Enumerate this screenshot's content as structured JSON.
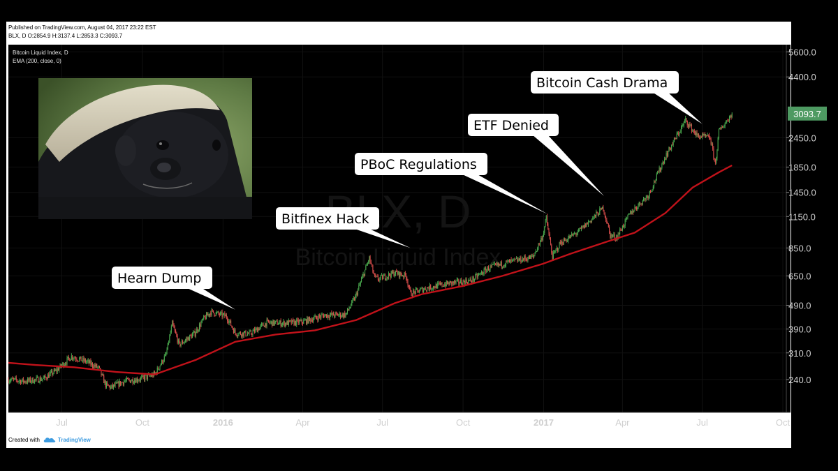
{
  "header": {
    "published": "Published on TradingView.com, August 04, 2017 23:22 EST",
    "symbol_line": "BLX, D  O:2854.9 H:3137.4 L:2853.3 C:3093.7"
  },
  "pane": {
    "title": "Bitcoin Liquid Index, D",
    "indicator": "EMA (200, close, 0)",
    "watermark_symbol": "BLX, D",
    "watermark_name": "Bitcoin Liquid Index"
  },
  "footer": {
    "created_with": "Created with",
    "brand": "TradingView"
  },
  "colors": {
    "background": "#000000",
    "frame": "#ffffff",
    "up_candle": "#4cae50",
    "down_candle": "#e0504e",
    "ema": "#c1121a",
    "last_price_badge": "#4e9a62",
    "axis_text": "#cfcfcf",
    "callout_box": "#ffffff"
  },
  "photo": {
    "icon": "honey-badger-photo"
  },
  "chart_data": {
    "type": "candlestick",
    "y_scale": "log",
    "y_ticks": [
      240.0,
      310.0,
      390.0,
      490.0,
      650.0,
      850.0,
      1150.0,
      1450.0,
      1850.0,
      2450.0,
      4400.0,
      5600.0
    ],
    "y_tick_labels": [
      "240.0",
      "310.0",
      "390.0",
      "490.0",
      "650.0",
      "850.0",
      "1150.0",
      "1450.0",
      "1850.0",
      "2450.0",
      "4400.0",
      "5600.0"
    ],
    "x_range": [
      "2015-05-01",
      "2017-10-05"
    ],
    "x_ticks": [
      {
        "date": "2015-07-01",
        "label": "Jul",
        "bold": false
      },
      {
        "date": "2015-10-01",
        "label": "Oct",
        "bold": false
      },
      {
        "date": "2016-01-01",
        "label": "2016",
        "bold": true
      },
      {
        "date": "2016-04-01",
        "label": "Apr",
        "bold": false
      },
      {
        "date": "2016-07-01",
        "label": "Jul",
        "bold": false
      },
      {
        "date": "2016-10-01",
        "label": "Oct",
        "bold": false
      },
      {
        "date": "2017-01-01",
        "label": "2017",
        "bold": true
      },
      {
        "date": "2017-04-01",
        "label": "Apr",
        "bold": false
      },
      {
        "date": "2017-07-01",
        "label": "Jul",
        "bold": false
      },
      {
        "date": "2017-10-01",
        "label": "Oct",
        "bold": false
      }
    ],
    "last_price": 3093.7,
    "last_price_label": "3093.7",
    "ohlc_last": {
      "open": 2854.9,
      "high": 3137.4,
      "low": 2853.3,
      "close": 3093.7
    },
    "price_path": [
      [
        "2015-05-01",
        240
      ],
      [
        "2015-05-20",
        236
      ],
      [
        "2015-06-10",
        242
      ],
      [
        "2015-06-25",
        262
      ],
      [
        "2015-07-12",
        300
      ],
      [
        "2015-07-30",
        284
      ],
      [
        "2015-08-12",
        268
      ],
      [
        "2015-08-20",
        228
      ],
      [
        "2015-08-26",
        222
      ],
      [
        "2015-09-10",
        236
      ],
      [
        "2015-09-30",
        242
      ],
      [
        "2015-10-15",
        252
      ],
      [
        "2015-10-28",
        305
      ],
      [
        "2015-11-04",
        410
      ],
      [
        "2015-11-07",
        380
      ],
      [
        "2015-11-12",
        335
      ],
      [
        "2015-11-30",
        375
      ],
      [
        "2015-12-10",
        430
      ],
      [
        "2015-12-18",
        460
      ],
      [
        "2016-01-05",
        440
      ],
      [
        "2016-01-15",
        375
      ],
      [
        "2016-02-01",
        372
      ],
      [
        "2016-02-20",
        415
      ],
      [
        "2016-03-10",
        412
      ],
      [
        "2016-04-01",
        418
      ],
      [
        "2016-04-25",
        445
      ],
      [
        "2016-05-20",
        448
      ],
      [
        "2016-05-31",
        530
      ],
      [
        "2016-06-16",
        770
      ],
      [
        "2016-06-22",
        640
      ],
      [
        "2016-06-26",
        630
      ],
      [
        "2016-07-15",
        670
      ],
      [
        "2016-07-28",
        650
      ],
      [
        "2016-08-02",
        548
      ],
      [
        "2016-08-20",
        578
      ],
      [
        "2016-09-15",
        605
      ],
      [
        "2016-10-10",
        620
      ],
      [
        "2016-10-30",
        700
      ],
      [
        "2016-11-20",
        738
      ],
      [
        "2016-12-20",
        780
      ],
      [
        "2016-12-31",
        960
      ],
      [
        "2017-01-04",
        1130
      ],
      [
        "2017-01-11",
        780
      ],
      [
        "2017-01-20",
        890
      ],
      [
        "2017-02-10",
        995
      ],
      [
        "2017-02-28",
        1150
      ],
      [
        "2017-03-10",
        1250
      ],
      [
        "2017-03-18",
        960
      ],
      [
        "2017-03-25",
        940
      ],
      [
        "2017-04-10",
        1190
      ],
      [
        "2017-05-01",
        1420
      ],
      [
        "2017-05-20",
        2050
      ],
      [
        "2017-06-12",
        2900
      ],
      [
        "2017-06-25",
        2500
      ],
      [
        "2017-07-10",
        2450
      ],
      [
        "2017-07-16",
        1900
      ],
      [
        "2017-07-20",
        2600
      ],
      [
        "2017-08-04",
        3093.7
      ]
    ],
    "ema_path": [
      [
        "2015-05-01",
        282
      ],
      [
        "2015-06-01",
        276
      ],
      [
        "2015-07-15",
        270
      ],
      [
        "2015-09-01",
        258
      ],
      [
        "2015-10-15",
        252
      ],
      [
        "2015-12-01",
        290
      ],
      [
        "2016-01-15",
        345
      ],
      [
        "2016-03-01",
        370
      ],
      [
        "2016-04-15",
        385
      ],
      [
        "2016-06-01",
        425
      ],
      [
        "2016-07-15",
        500
      ],
      [
        "2016-08-15",
        545
      ],
      [
        "2016-10-01",
        590
      ],
      [
        "2016-11-15",
        650
      ],
      [
        "2016-12-31",
        730
      ],
      [
        "2017-02-01",
        805
      ],
      [
        "2017-03-15",
        905
      ],
      [
        "2017-04-15",
        985
      ],
      [
        "2017-05-20",
        1190
      ],
      [
        "2017-06-20",
        1520
      ],
      [
        "2017-07-20",
        1760
      ],
      [
        "2017-08-04",
        1880
      ]
    ],
    "annotations": [
      {
        "label": "Hearn Dump",
        "date": "2016-01-15",
        "price": 470
      },
      {
        "label": "Bitfinex Hack",
        "date": "2016-08-02",
        "price": 850
      },
      {
        "label": "PBoC Regulations",
        "date": "2017-01-05",
        "price": 1180
      },
      {
        "label": "ETF Denied",
        "date": "2017-03-11",
        "price": 1400
      },
      {
        "label": "Bitcoin Cash Drama",
        "date": "2017-07-01",
        "price": 2800
      }
    ]
  }
}
